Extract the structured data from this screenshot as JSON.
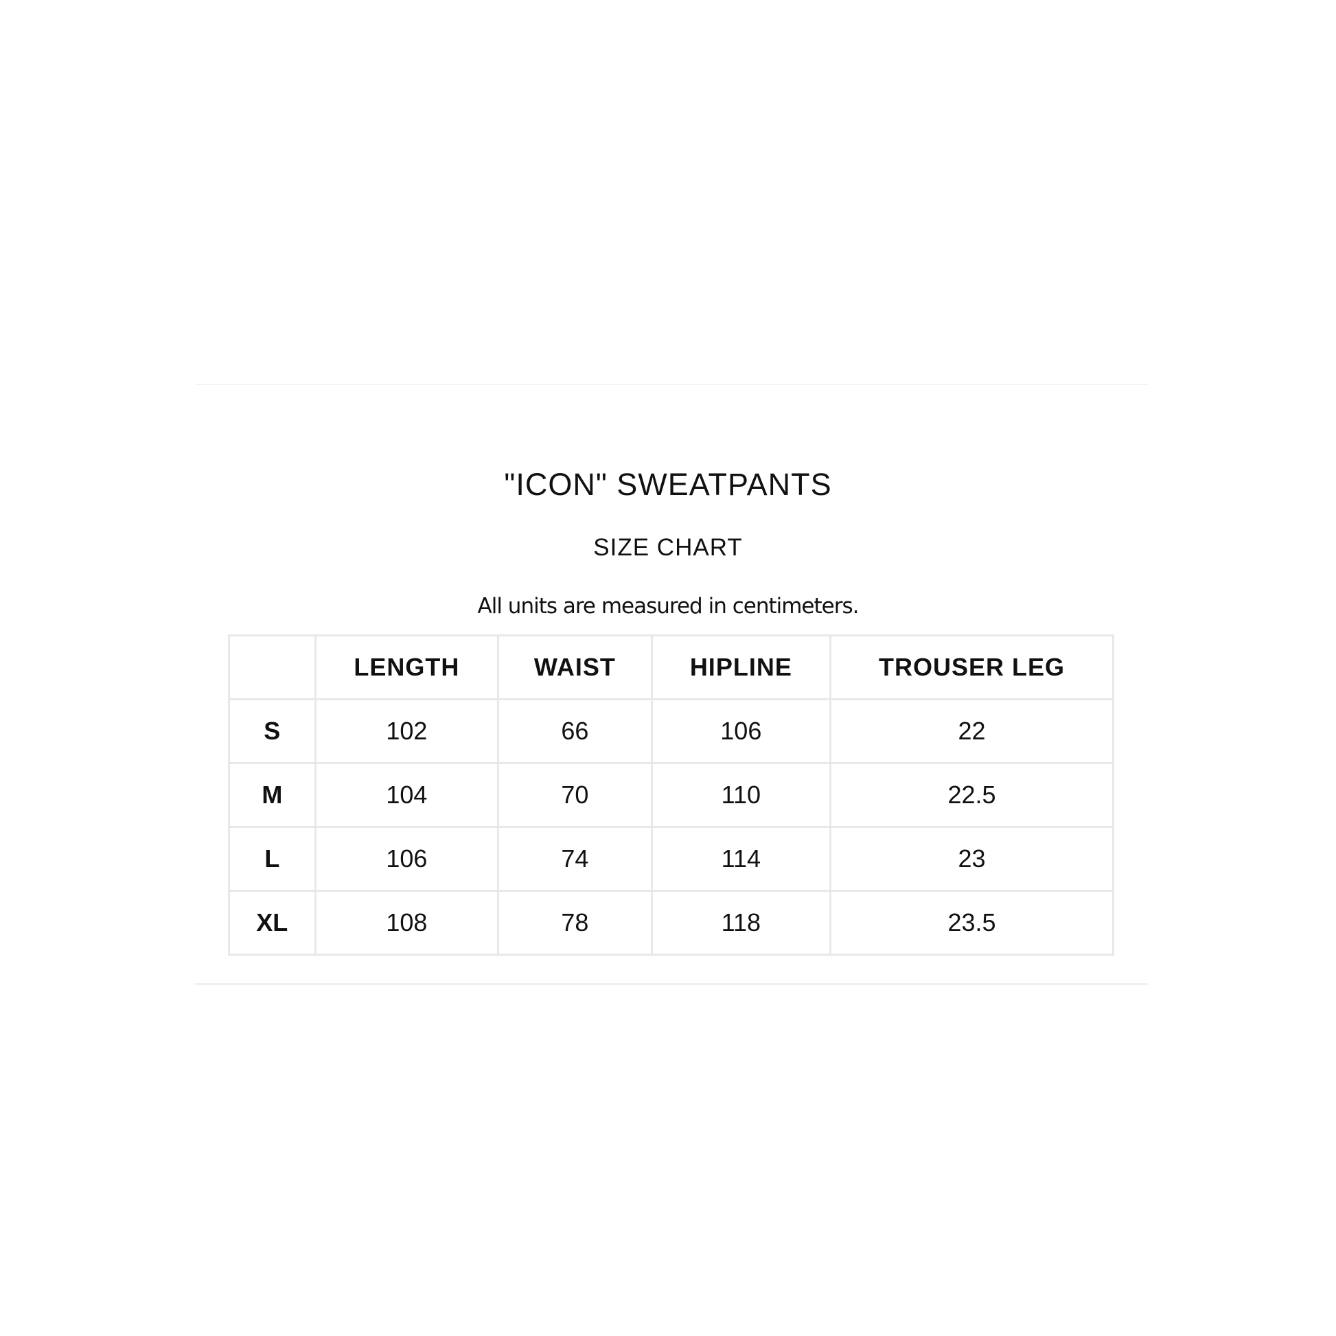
{
  "title": "\"ICON\" SWEATPANTS",
  "subtitle": "SIZE CHART",
  "note": "All units are measured in centimeters.",
  "table": {
    "headers": [
      "",
      "LENGTH",
      "WAIST",
      "HIPLINE",
      "TROUSER LEG"
    ],
    "rows": [
      [
        "S",
        "102",
        "66",
        "106",
        "22"
      ],
      [
        "M",
        "104",
        "70",
        "110",
        "22.5"
      ],
      [
        "L",
        "106",
        "74",
        "114",
        "23"
      ],
      [
        "XL",
        "108",
        "78",
        "118",
        "23.5"
      ]
    ]
  }
}
